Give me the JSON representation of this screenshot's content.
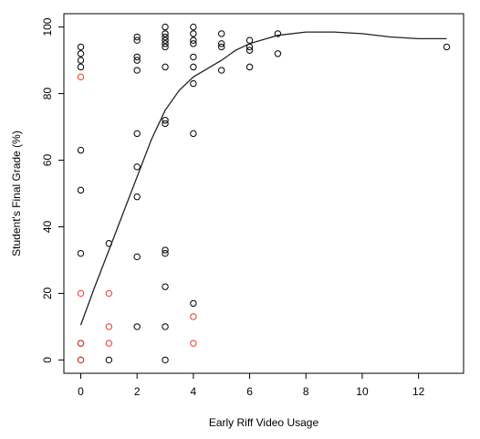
{
  "chart_data": {
    "type": "scatter",
    "title": "",
    "xlabel": "Early Riff Video Usage",
    "ylabel": "Student's Final Grade (%)",
    "xlim": [
      -0.6,
      13.6
    ],
    "ylim": [
      -4,
      104
    ],
    "xticks": [
      0,
      2,
      4,
      6,
      8,
      10,
      12
    ],
    "yticks": [
      0,
      20,
      40,
      60,
      80,
      100
    ],
    "grid": false,
    "colors": {
      "black_points": "#000000",
      "red_points": "#e8362b",
      "curve": "#222222"
    },
    "series": [
      {
        "color": "black",
        "points": [
          [
            0,
            94
          ],
          [
            0,
            92
          ],
          [
            0,
            90
          ],
          [
            0,
            88
          ],
          [
            0,
            63
          ],
          [
            0,
            51
          ],
          [
            0,
            32
          ],
          [
            0,
            5
          ],
          [
            0,
            0
          ],
          [
            1,
            35
          ],
          [
            1,
            0
          ],
          [
            2,
            97
          ],
          [
            2,
            96
          ],
          [
            2,
            91
          ],
          [
            2,
            90
          ],
          [
            2,
            87
          ],
          [
            2,
            68
          ],
          [
            2,
            58
          ],
          [
            2,
            49
          ],
          [
            2,
            31
          ],
          [
            2,
            10
          ],
          [
            3,
            100
          ],
          [
            3,
            98
          ],
          [
            3,
            97
          ],
          [
            3,
            96
          ],
          [
            3,
            95
          ],
          [
            3,
            94
          ],
          [
            3,
            88
          ],
          [
            3,
            72
          ],
          [
            3,
            71
          ],
          [
            3,
            33
          ],
          [
            3,
            32
          ],
          [
            3,
            22
          ],
          [
            3,
            10
          ],
          [
            3,
            0
          ],
          [
            4,
            100
          ],
          [
            4,
            98
          ],
          [
            4,
            96
          ],
          [
            4,
            95
          ],
          [
            4,
            91
          ],
          [
            4,
            88
          ],
          [
            4,
            83
          ],
          [
            4,
            68
          ],
          [
            4,
            17
          ],
          [
            5,
            98
          ],
          [
            5,
            95
          ],
          [
            5,
            94
          ],
          [
            5,
            87
          ],
          [
            6,
            96
          ],
          [
            6,
            94
          ],
          [
            6,
            93
          ],
          [
            6,
            88
          ],
          [
            7,
            98
          ],
          [
            7,
            92
          ],
          [
            13,
            94
          ]
        ]
      },
      {
        "color": "red",
        "points": [
          [
            0,
            85
          ],
          [
            0,
            20
          ],
          [
            0,
            5
          ],
          [
            0,
            0
          ],
          [
            1,
            20
          ],
          [
            1,
            10
          ],
          [
            1,
            5
          ],
          [
            4,
            13
          ],
          [
            4,
            5
          ]
        ]
      }
    ],
    "trend_curve": [
      [
        0,
        10.5
      ],
      [
        0.5,
        22
      ],
      [
        1,
        33
      ],
      [
        1.5,
        44
      ],
      [
        2,
        55
      ],
      [
        2.5,
        66
      ],
      [
        3,
        75
      ],
      [
        3.5,
        81
      ],
      [
        4,
        85
      ],
      [
        4.5,
        87.5
      ],
      [
        5,
        90
      ],
      [
        5.5,
        93
      ],
      [
        6,
        95
      ],
      [
        7,
        97.5
      ],
      [
        8,
        98.5
      ],
      [
        9,
        98.5
      ],
      [
        10,
        98
      ],
      [
        11,
        97
      ],
      [
        12,
        96.5
      ],
      [
        13,
        96.5
      ]
    ]
  }
}
